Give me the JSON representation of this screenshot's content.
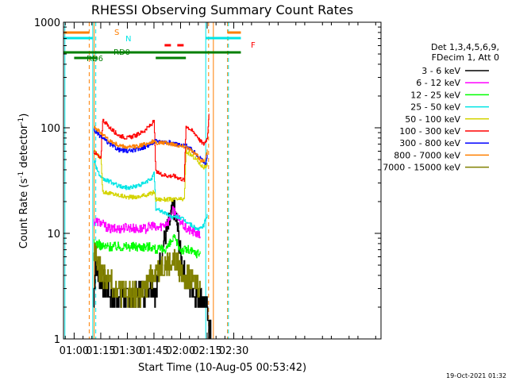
{
  "chart_data": {
    "type": "line",
    "title": "RHESSI Observing Summary Count Rates",
    "xlabel": "Start Time (10-Aug-05 00:53:42)",
    "ylabel_main": "Count Rate (s",
    "ylabel_sup1": "-1",
    "ylabel_mid": " detector",
    "ylabel_sup2": "-1",
    "ylabel_end": ")",
    "timestamp": "19-Oct-2021 01:32",
    "y_scale": "log",
    "ylim": [
      1,
      1000
    ],
    "xlim_min": [
      54,
      233
    ],
    "x_ticks": [
      {
        "m": 60,
        "label": "01:00"
      },
      {
        "m": 75,
        "label": "01:15"
      },
      {
        "m": 90,
        "label": "01:30"
      },
      {
        "m": 105,
        "label": "01:45"
      },
      {
        "m": 120,
        "label": "02:00"
      },
      {
        "m": 135,
        "label": "02:15"
      },
      {
        "m": 150,
        "label": "02:30"
      }
    ],
    "y_ticks": [
      {
        "v": 1,
        "label": "1"
      },
      {
        "v": 10,
        "label": "10"
      },
      {
        "v": 100,
        "label": "100"
      },
      {
        "v": 1000,
        "label": "1000"
      }
    ],
    "legend_title": [
      "Det 1,3,4,5,6,9,",
      "FDecim 1, Att 0"
    ],
    "legend_placement": "right",
    "flags": {
      "S": {
        "label": "S",
        "color": "#ff7f00"
      },
      "N": {
        "label": "N",
        "color": "#00e5e5"
      },
      "RD0": {
        "label": "RD0",
        "color": "#007f00"
      },
      "RD6": {
        "label": "RD6",
        "color": "#007f00"
      },
      "F": {
        "label": "F",
        "color": "#ff0000"
      }
    },
    "series": [
      {
        "name": "3 - 6 keV",
        "color": "#000000",
        "points": [
          [
            71,
            2.2
          ],
          [
            72,
            6
          ],
          [
            73,
            4
          ],
          [
            76,
            3.5
          ],
          [
            80,
            2.6
          ],
          [
            85,
            2.4
          ],
          [
            90,
            2.5
          ],
          [
            95,
            2.5
          ],
          [
            98,
            3
          ],
          [
            100,
            2.8
          ],
          [
            104,
            3.5
          ],
          [
            106,
            2.5
          ],
          [
            108,
            5
          ],
          [
            111,
            9
          ],
          [
            114,
            13
          ],
          [
            116,
            18
          ],
          [
            118,
            12
          ],
          [
            120,
            6
          ],
          [
            123,
            3.5
          ],
          [
            126,
            3
          ],
          [
            128,
            2.6
          ],
          [
            133,
            2.4
          ],
          [
            136,
            1.5
          ],
          [
            137,
            1
          ]
        ]
      },
      {
        "name": "6 - 12 keV",
        "color": "#ff00ff",
        "points": [
          [
            71,
            13
          ],
          [
            73,
            13
          ],
          [
            75,
            12.5
          ],
          [
            80,
            11
          ],
          [
            85,
            11
          ],
          [
            90,
            11.5
          ],
          [
            95,
            11
          ],
          [
            100,
            11
          ],
          [
            104,
            12
          ],
          [
            106,
            11
          ],
          [
            110,
            12
          ],
          [
            113,
            13
          ],
          [
            116,
            17
          ],
          [
            118,
            14
          ],
          [
            120,
            13
          ],
          [
            123,
            11
          ],
          [
            126,
            10.5
          ],
          [
            129,
            10
          ],
          [
            131,
            9.5
          ]
        ]
      },
      {
        "name": "12 - 25 keV",
        "color": "#00ff00",
        "points": [
          [
            71,
            8
          ],
          [
            73,
            8
          ],
          [
            76,
            7.5
          ],
          [
            80,
            7.5
          ],
          [
            85,
            7.5
          ],
          [
            90,
            7.5
          ],
          [
            95,
            7.5
          ],
          [
            100,
            7.5
          ],
          [
            104,
            7.5
          ],
          [
            106,
            7
          ],
          [
            110,
            7
          ],
          [
            113,
            7.5
          ],
          [
            116,
            9
          ],
          [
            118,
            8
          ],
          [
            120,
            7
          ],
          [
            124,
            7
          ],
          [
            128,
            6.5
          ],
          [
            131,
            6.5
          ]
        ]
      },
      {
        "name": "25 - 50 keV",
        "color": "#00e5e5",
        "points": [
          [
            71,
            50
          ],
          [
            72,
            45
          ],
          [
            73,
            40
          ],
          [
            75,
            33
          ],
          [
            80,
            31
          ],
          [
            85,
            28
          ],
          [
            90,
            27
          ],
          [
            95,
            28
          ],
          [
            100,
            30
          ],
          [
            104,
            34
          ],
          [
            105,
            37
          ],
          [
            106,
            17
          ],
          [
            110,
            16
          ],
          [
            113,
            15
          ],
          [
            116,
            14
          ],
          [
            118,
            14.5
          ],
          [
            120,
            14
          ],
          [
            123,
            13
          ],
          [
            126,
            12
          ],
          [
            129,
            11
          ],
          [
            131,
            11
          ],
          [
            133,
            12
          ],
          [
            135,
            15
          ]
        ]
      },
      {
        "name": "50 - 100 keV",
        "color": "#d4d400",
        "points": [
          [
            71,
            60
          ],
          [
            73,
            55
          ],
          [
            75,
            52
          ],
          [
            76,
            25
          ],
          [
            80,
            24
          ],
          [
            85,
            23
          ],
          [
            90,
            22
          ],
          [
            95,
            22
          ],
          [
            100,
            23
          ],
          [
            104,
            24
          ],
          [
            105,
            25
          ],
          [
            106,
            21
          ],
          [
            110,
            21
          ],
          [
            113,
            21
          ],
          [
            116,
            21
          ],
          [
            118,
            21
          ],
          [
            120,
            21
          ],
          [
            122,
            21
          ],
          [
            123,
            60
          ],
          [
            126,
            55
          ],
          [
            129,
            50
          ],
          [
            131,
            45
          ],
          [
            133,
            42
          ],
          [
            135,
            45
          ]
        ]
      },
      {
        "name": "100 - 300 keV",
        "color": "#ff0000",
        "points": [
          [
            71,
            60
          ],
          [
            73,
            55
          ],
          [
            75,
            50
          ],
          [
            76,
            120
          ],
          [
            80,
            100
          ],
          [
            85,
            85
          ],
          [
            90,
            80
          ],
          [
            95,
            85
          ],
          [
            100,
            95
          ],
          [
            104,
            110
          ],
          [
            105,
            115
          ],
          [
            106,
            38
          ],
          [
            110,
            36
          ],
          [
            113,
            35
          ],
          [
            116,
            35
          ],
          [
            118,
            34
          ],
          [
            120,
            33
          ],
          [
            122,
            32
          ],
          [
            123,
            105
          ],
          [
            126,
            95
          ],
          [
            129,
            85
          ],
          [
            131,
            75
          ],
          [
            133,
            70
          ],
          [
            135,
            80
          ],
          [
            136,
            140
          ]
        ]
      },
      {
        "name": "300 - 800 keV",
        "color": "#0000ff",
        "points": [
          [
            71,
            95
          ],
          [
            73,
            88
          ],
          [
            75,
            82
          ],
          [
            80,
            70
          ],
          [
            85,
            62
          ],
          [
            90,
            60
          ],
          [
            95,
            62
          ],
          [
            100,
            66
          ],
          [
            104,
            72
          ],
          [
            106,
            75
          ],
          [
            110,
            74
          ],
          [
            113,
            73
          ],
          [
            116,
            71
          ],
          [
            118,
            70
          ],
          [
            120,
            68
          ],
          [
            123,
            68
          ],
          [
            126,
            62
          ],
          [
            129,
            56
          ],
          [
            131,
            52
          ],
          [
            133,
            47
          ],
          [
            134,
            45
          ],
          [
            135,
            55
          ]
        ]
      },
      {
        "name": "800 - 7000 keV",
        "color": "#ff7f00",
        "points": [
          [
            71,
            105
          ],
          [
            73,
            95
          ],
          [
            75,
            90
          ],
          [
            80,
            75
          ],
          [
            85,
            68
          ],
          [
            90,
            65
          ],
          [
            95,
            67
          ],
          [
            100,
            70
          ],
          [
            104,
            74
          ],
          [
            106,
            72
          ],
          [
            110,
            72
          ],
          [
            113,
            71
          ],
          [
            116,
            70
          ],
          [
            118,
            69
          ],
          [
            120,
            67
          ],
          [
            123,
            67
          ],
          [
            126,
            60
          ],
          [
            129,
            55
          ],
          [
            131,
            50
          ],
          [
            133,
            48
          ],
          [
            135,
            60
          ]
        ]
      },
      {
        "name": "7000 - 15000 keV",
        "color": "#808000",
        "points": [
          [
            71,
            6
          ],
          [
            72,
            7
          ],
          [
            73,
            5
          ],
          [
            75,
            4.5
          ],
          [
            78,
            3.5
          ],
          [
            80,
            3.5
          ],
          [
            85,
            3
          ],
          [
            90,
            2.6
          ],
          [
            95,
            2.5
          ],
          [
            100,
            3
          ],
          [
            104,
            4
          ],
          [
            106,
            4.5
          ],
          [
            110,
            5
          ],
          [
            113,
            5
          ],
          [
            116,
            5.5
          ],
          [
            118,
            5
          ],
          [
            120,
            4.5
          ],
          [
            123,
            4
          ],
          [
            126,
            3.5
          ],
          [
            129,
            3.5
          ],
          [
            131,
            3
          ]
        ]
      }
    ],
    "verticals": [
      {
        "m": 68.5,
        "color": "#ff7f00",
        "dash": true
      },
      {
        "m": 71.3,
        "color": "#ff7f00",
        "dash": false
      },
      {
        "m": 72.2,
        "color": "#00e5e5",
        "dash": true
      },
      {
        "m": 70.5,
        "color": "#00e5e5",
        "dash": false
      },
      {
        "m": 54.8,
        "color": "#00e5e5",
        "dash": false
      },
      {
        "m": 134.2,
        "color": "#00e5e5",
        "dash": false
      },
      {
        "m": 135.8,
        "color": "#ff7f00",
        "dash": true
      },
      {
        "m": 138.5,
        "color": "#ff7f00",
        "dash": false
      },
      {
        "m": 146.5,
        "color": "#ff7f00",
        "dash": true
      },
      {
        "m": 147.0,
        "color": "#00e5e5",
        "dash": true
      }
    ]
  }
}
